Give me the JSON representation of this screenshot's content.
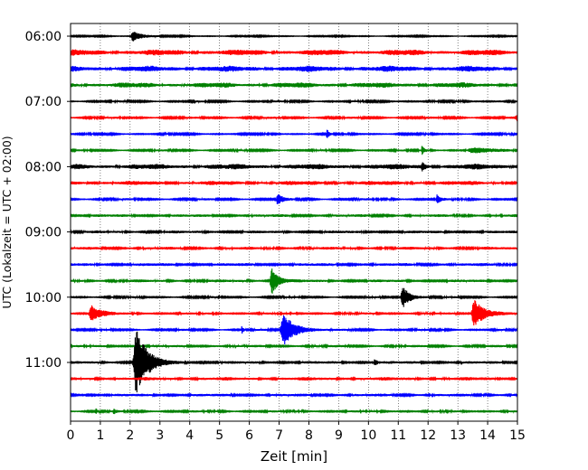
{
  "chart_data": {
    "type": "line",
    "title": "",
    "xlabel": "Zeit  [min]",
    "ylabel": "UTC (Lokalzeit = UTC + 02:00)",
    "xlim": [
      0,
      15
    ],
    "x_ticks": [
      0,
      1,
      2,
      3,
      4,
      5,
      6,
      7,
      8,
      9,
      10,
      11,
      12,
      13,
      14,
      15
    ],
    "y_tick_labels": [
      "06:00",
      "07:00",
      "08:00",
      "09:00",
      "10:00",
      "11:00"
    ],
    "minutes_per_trace": 15,
    "grid": "vertical dotted",
    "colors": [
      "#000000",
      "#ff0000",
      "#0000ff",
      "#008000"
    ],
    "traces": [
      {
        "start": "06:00",
        "color": "#000000",
        "noise": 0.6,
        "events": [
          [
            2.1,
            6,
            0.3
          ]
        ]
      },
      {
        "start": "06:15",
        "color": "#ff0000",
        "noise": 2.8,
        "events": []
      },
      {
        "start": "06:30",
        "color": "#0000ff",
        "noise": 2.8,
        "events": []
      },
      {
        "start": "06:45",
        "color": "#008000",
        "noise": 2.5,
        "events": []
      },
      {
        "start": "07:00",
        "color": "#000000",
        "noise": 0.9,
        "events": []
      },
      {
        "start": "07:15",
        "color": "#ff0000",
        "noise": 1.0,
        "events": [
          [
            15.0,
            4,
            0.3
          ]
        ]
      },
      {
        "start": "07:30",
        "color": "#0000ff",
        "noise": 0.8,
        "events": [
          [
            8.6,
            6,
            0.06
          ]
        ]
      },
      {
        "start": "07:45",
        "color": "#008000",
        "noise": 0.9,
        "events": [
          [
            11.8,
            5,
            0.08
          ],
          [
            13.5,
            2.5,
            0.8
          ]
        ]
      },
      {
        "start": "08:00",
        "color": "#000000",
        "noise": 2.6,
        "events": [
          [
            11.8,
            4,
            0.1
          ]
        ]
      },
      {
        "start": "08:15",
        "color": "#ff0000",
        "noise": 2.0,
        "events": []
      },
      {
        "start": "08:30",
        "color": "#0000ff",
        "noise": 1.0,
        "events": [
          [
            6.95,
            6,
            0.15
          ],
          [
            12.3,
            5,
            0.1
          ]
        ]
      },
      {
        "start": "08:45",
        "color": "#008000",
        "noise": 1.3,
        "events": []
      },
      {
        "start": "09:00",
        "color": "#000000",
        "noise": 1.3,
        "events": []
      },
      {
        "start": "09:15",
        "color": "#ff0000",
        "noise": 1.3,
        "events": []
      },
      {
        "start": "09:30",
        "color": "#0000ff",
        "noise": 1.4,
        "events": []
      },
      {
        "start": "09:45",
        "color": "#008000",
        "noise": 1.3,
        "events": [
          [
            6.75,
            16,
            0.2
          ]
        ]
      },
      {
        "start": "10:00",
        "color": "#000000",
        "noise": 0.9,
        "events": [
          [
            11.15,
            12,
            0.25
          ]
        ]
      },
      {
        "start": "10:15",
        "color": "#ff0000",
        "noise": 1.0,
        "events": [
          [
            0.7,
            9,
            0.3
          ],
          [
            13.55,
            16,
            0.35
          ]
        ]
      },
      {
        "start": "10:30",
        "color": "#0000ff",
        "noise": 0.9,
        "events": [
          [
            5.75,
            5,
            0.05
          ],
          [
            7.15,
            17,
            0.4
          ]
        ]
      },
      {
        "start": "10:45",
        "color": "#008000",
        "noise": 1.1,
        "events": []
      },
      {
        "start": "11:00",
        "color": "#000000",
        "noise": 1.3,
        "events": [
          [
            2.2,
            38,
            0.35
          ],
          [
            10.2,
            5,
            0.08
          ]
        ]
      },
      {
        "start": "11:15",
        "color": "#ff0000",
        "noise": 1.6,
        "events": []
      },
      {
        "start": "11:30",
        "color": "#0000ff",
        "noise": 1.3,
        "events": []
      },
      {
        "start": "11:45",
        "color": "#008000",
        "noise": 1.0,
        "events": [
          [
            0.85,
            3.5,
            0.05
          ],
          [
            1.45,
            3.5,
            0.05
          ]
        ]
      }
    ]
  }
}
